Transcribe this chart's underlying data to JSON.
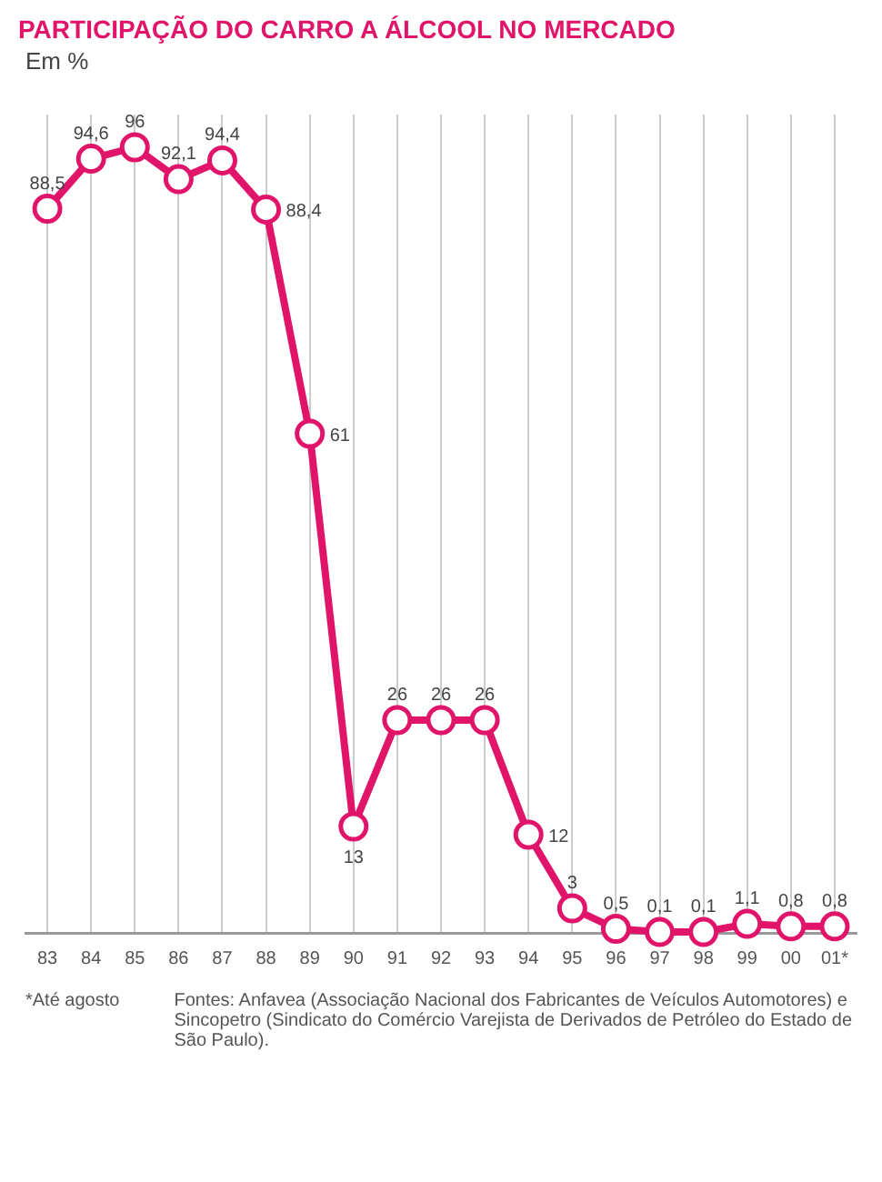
{
  "chart_data": {
    "type": "line",
    "title": "PARTICIPAÇÃO DO CARRO A ÁLCOOL NO MERCADO",
    "subtitle": "Em %",
    "categories": [
      "83",
      "84",
      "85",
      "86",
      "87",
      "88",
      "89",
      "90",
      "91",
      "92",
      "93",
      "94",
      "95",
      "96",
      "97",
      "98",
      "99",
      "00",
      "01*"
    ],
    "series": [
      {
        "color": "#e0156a",
        "values": [
          88.5,
          94.6,
          96,
          92.1,
          94.4,
          88.4,
          61,
          13,
          26,
          26,
          26,
          12,
          3,
          0.5,
          0.1,
          0.1,
          1.1,
          0.8,
          0.8
        ],
        "value_labels": [
          "88,5",
          "94,6",
          "96",
          "92,1",
          "94,4",
          "88,4",
          "61",
          "13",
          "26",
          "26",
          "26",
          "12",
          "3",
          "0,5",
          "0,1",
          "0,1",
          "1,1",
          "0,8",
          "0,8"
        ]
      }
    ],
    "marker": "circle",
    "grid": "x",
    "legend": false,
    "tick_labels": "x",
    "annotations": [
      "*Até agosto",
      "Fontes: Anfavea (Associação Nacional dos Fabricantes de Veículos Automotores) e Sincopetro (Sindicato do Comércio Varejista de Derivados de Petróleo do Estado de São Paulo)."
    ]
  }
}
